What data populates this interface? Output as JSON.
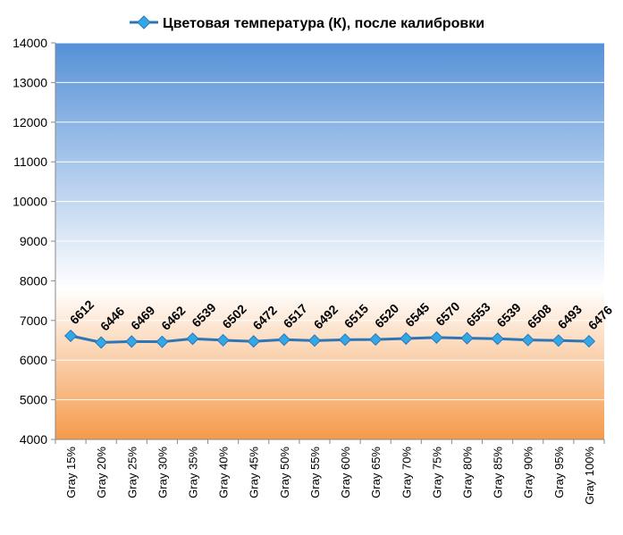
{
  "chart_data": {
    "type": "line",
    "title": "",
    "xlabel": "",
    "ylabel": "",
    "ylim": [
      4000,
      14000
    ],
    "y_ticks": [
      "4000",
      "5000",
      "6000",
      "7000",
      "8000",
      "9000",
      "10000",
      "11000",
      "12000",
      "13000",
      "14000"
    ],
    "categories": [
      "Gray 15%",
      "Gray 20%",
      "Gray 25%",
      "Gray 30%",
      "Gray 35%",
      "Gray 40%",
      "Gray 45%",
      "Gray 50%",
      "Gray 55%",
      "Gray 60%",
      "Gray 65%",
      "Gray 70%",
      "Gray 75%",
      "Gray 80%",
      "Gray 85%",
      "Gray 90%",
      "Gray 95%",
      "Gray 100%"
    ],
    "series": [
      {
        "name": "Цветовая температура (К), после калибровки",
        "values": [
          6612,
          6446,
          6469,
          6462,
          6539,
          6502,
          6472,
          6517,
          6492,
          6515,
          6520,
          6545,
          6570,
          6553,
          6539,
          6508,
          6493,
          6476
        ],
        "color": "#2e75b6",
        "marker_color": "#33a8e6"
      }
    ],
    "legend_position": "top",
    "grid": true,
    "data_labels": true,
    "background_gradient": {
      "top": "#5591d7",
      "middle": "#ffffff",
      "bottom": "#f59a4a"
    }
  }
}
